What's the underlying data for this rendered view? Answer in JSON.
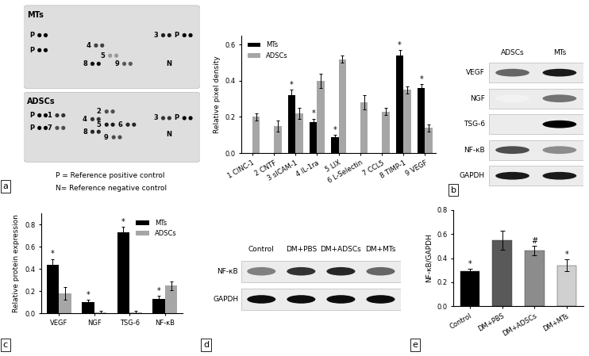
{
  "panel_labels": [
    "a",
    "b",
    "c",
    "d",
    "e"
  ],
  "cytokine_array": {
    "arrays": [
      {
        "name": "MTs",
        "spots": [
          "P",
          "P",
          "4",
          "5",
          "8",
          "9",
          "3",
          "P",
          "N"
        ]
      },
      {
        "name": "ADSCs",
        "spots": [
          "P",
          "1",
          "2",
          "4",
          "5",
          "6",
          "P",
          "7",
          "8",
          "9",
          "3",
          "P",
          "N"
        ]
      }
    ],
    "key": [
      "P = Reference positive control",
      "N= Reference negative control"
    ]
  },
  "chart_data": [
    {
      "type": "bar",
      "ylabel": "Relative pixel density",
      "categories": [
        "1 CINC-1",
        "2 CNTF",
        "3 sICAM-1",
        "4 IL-1ra",
        "5 LIX",
        "6 L-Selectin",
        "7 CCL5",
        "8 TIMP-1",
        "9 VEGF"
      ],
      "series": [
        {
          "name": "MTs",
          "color": "#000000",
          "values": [
            0,
            0,
            0.32,
            0.17,
            0.09,
            0,
            0,
            0.54,
            0.36
          ],
          "errors": [
            0,
            0,
            0.03,
            0.02,
            0.01,
            0,
            0,
            0.03,
            0.02
          ],
          "annotations": [
            null,
            null,
            "*",
            "*",
            "*",
            null,
            null,
            "*",
            "*"
          ]
        },
        {
          "name": "ADSCs",
          "color": "#a6a6a6",
          "values": [
            0.2,
            0.15,
            0.22,
            0.4,
            0.52,
            0.28,
            0.23,
            0.35,
            0.14
          ],
          "errors": [
            0.02,
            0.03,
            0.03,
            0.04,
            0.02,
            0.04,
            0.02,
            0.02,
            0.02
          ],
          "annotations": [
            null,
            null,
            null,
            null,
            null,
            null,
            null,
            null,
            null
          ]
        }
      ],
      "ylim": [
        0,
        0.65
      ],
      "yticks": [
        0.0,
        0.2,
        0.4,
        0.6
      ],
      "legend": "upper left"
    },
    {
      "type": "bar",
      "ylabel": "Relative protein expression",
      "categories": [
        "VEGF",
        "NGF",
        "TSG-6",
        "NF-κB"
      ],
      "series": [
        {
          "name": "MTs",
          "color": "#000000",
          "values": [
            0.44,
            0.1,
            0.73,
            0.13
          ],
          "errors": [
            0.05,
            0.02,
            0.05,
            0.03
          ],
          "annotations": [
            "*",
            "*",
            "*",
            "*"
          ]
        },
        {
          "name": "ADSCs",
          "color": "#a6a6a6",
          "values": [
            0.18,
            0.01,
            0.01,
            0.25
          ],
          "errors": [
            0.06,
            0.01,
            0.01,
            0.04
          ],
          "annotations": [
            null,
            null,
            null,
            null
          ]
        }
      ],
      "ylim": [
        0,
        0.9
      ],
      "yticks": [
        0.0,
        0.2,
        0.4,
        0.6,
        0.8
      ],
      "legend": "upper right"
    },
    {
      "type": "bar",
      "ylabel": "NF-κB/GAPDH",
      "categories": [
        "Control",
        "DM+PBS",
        "DM+ADSCs",
        "DM+MTs"
      ],
      "values": [
        0.29,
        0.55,
        0.46,
        0.34
      ],
      "errors": [
        0.02,
        0.08,
        0.04,
        0.05
      ],
      "annotations": [
        "*",
        null,
        "#",
        "*"
      ],
      "colors": [
        "#000000",
        "#595959",
        "#8c8c8c",
        "#d0d0d0"
      ],
      "ylim": [
        0,
        0.8
      ],
      "yticks": [
        0.0,
        0.2,
        0.4,
        0.6,
        0.8
      ]
    }
  ],
  "blots": [
    {
      "columns": [
        "ADSCs",
        "MTs"
      ],
      "rows": [
        "VEGF",
        "NGF",
        "TSG-6",
        "NF-κB",
        "GAPDH"
      ]
    },
    {
      "columns": [
        "Control",
        "DM+PBS",
        "DM+ADSCs",
        "DM+MTs"
      ],
      "rows": [
        "NF-κB",
        "GAPDH"
      ]
    }
  ]
}
